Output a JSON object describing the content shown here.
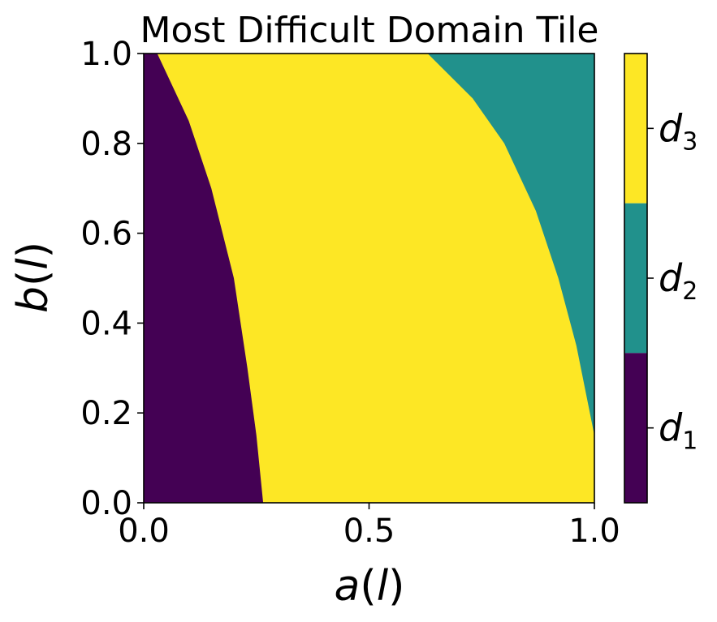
{
  "chart_data": {
    "type": "heatmap",
    "title": "Most Difficult Domain Tile",
    "xlabel": "a(l)",
    "ylabel": "b(l)",
    "xlim": [
      0.0,
      1.0
    ],
    "ylim": [
      0.0,
      1.0
    ],
    "xticks": [
      "0.0",
      "0.5",
      "1.0"
    ],
    "yticks": [
      "0.0",
      "0.2",
      "0.4",
      "0.6",
      "0.8",
      "1.0"
    ],
    "grid": false,
    "regions": [
      {
        "label": "d1",
        "color": "#440154",
        "description_boundary_to_next": [
          [
            0.03,
            1.0
          ],
          [
            0.1,
            0.85
          ],
          [
            0.15,
            0.7
          ],
          [
            0.2,
            0.5
          ],
          [
            0.23,
            0.3
          ],
          [
            0.25,
            0.15
          ],
          [
            0.265,
            0.0
          ]
        ]
      },
      {
        "label": "d3",
        "color": "#fde725"
      },
      {
        "label": "d2",
        "color": "#21918c",
        "description_boundary_from_d3": [
          [
            0.63,
            1.0
          ],
          [
            0.73,
            0.9
          ],
          [
            0.8,
            0.8
          ],
          [
            0.87,
            0.65
          ],
          [
            0.92,
            0.5
          ],
          [
            0.96,
            0.35
          ],
          [
            0.99,
            0.2
          ],
          [
            1.0,
            0.15
          ]
        ]
      }
    ],
    "colorbar": {
      "labels": [
        {
          "main": "d",
          "sub": "3",
          "color": "#fde725"
        },
        {
          "main": "d",
          "sub": "2",
          "color": "#21918c"
        },
        {
          "main": "d",
          "sub": "1",
          "color": "#440154"
        }
      ]
    }
  },
  "colors": {
    "d1": "#440154",
    "d2": "#21918c",
    "d3": "#fde725"
  }
}
